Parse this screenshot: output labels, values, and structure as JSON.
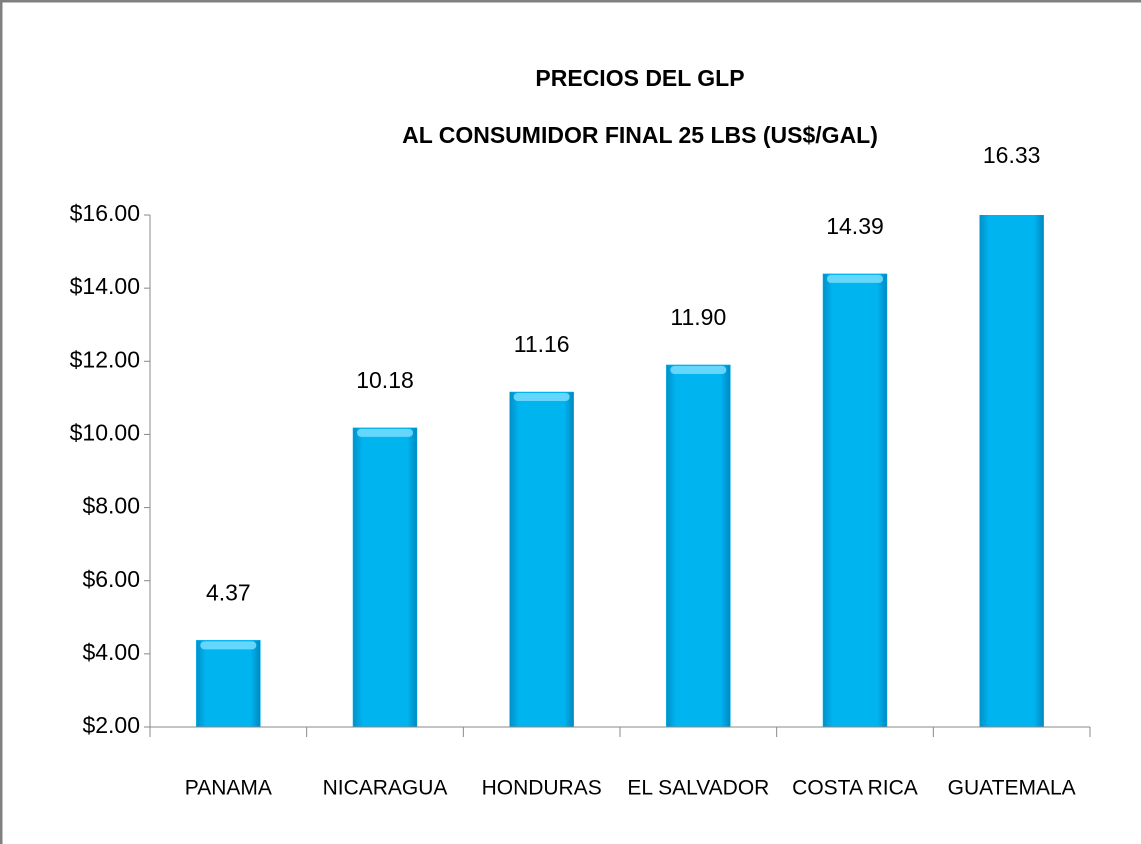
{
  "chart_data": {
    "type": "bar",
    "title": "PRECIOS DEL GLP",
    "subtitle": "AL CONSUMIDOR FINAL  25 LBS (US$/GAL)",
    "categories": [
      "PANAMA",
      "NICARAGUA",
      "HONDURAS",
      "EL SALVADOR",
      "COSTA RICA",
      "GUATEMALA"
    ],
    "values": [
      4.37,
      10.18,
      11.16,
      11.9,
      14.39,
      16.33
    ],
    "value_labels": [
      "4.37",
      "10.18",
      "11.16",
      "11.90",
      "14.39",
      "16.33"
    ],
    "color": "#00b4f0",
    "ylim": [
      2,
      16
    ],
    "yticks": [
      {
        "value": 2,
        "label": "$2.00"
      },
      {
        "value": 4,
        "label": "$4.00"
      },
      {
        "value": 6,
        "label": "$6.00"
      },
      {
        "value": 8,
        "label": "$8.00"
      },
      {
        "value": 10,
        "label": "$10.00"
      },
      {
        "value": 12,
        "label": "$12.00"
      },
      {
        "value": 14,
        "label": "$14.00"
      },
      {
        "value": 16,
        "label": "$16.00"
      }
    ],
    "grid": false
  }
}
